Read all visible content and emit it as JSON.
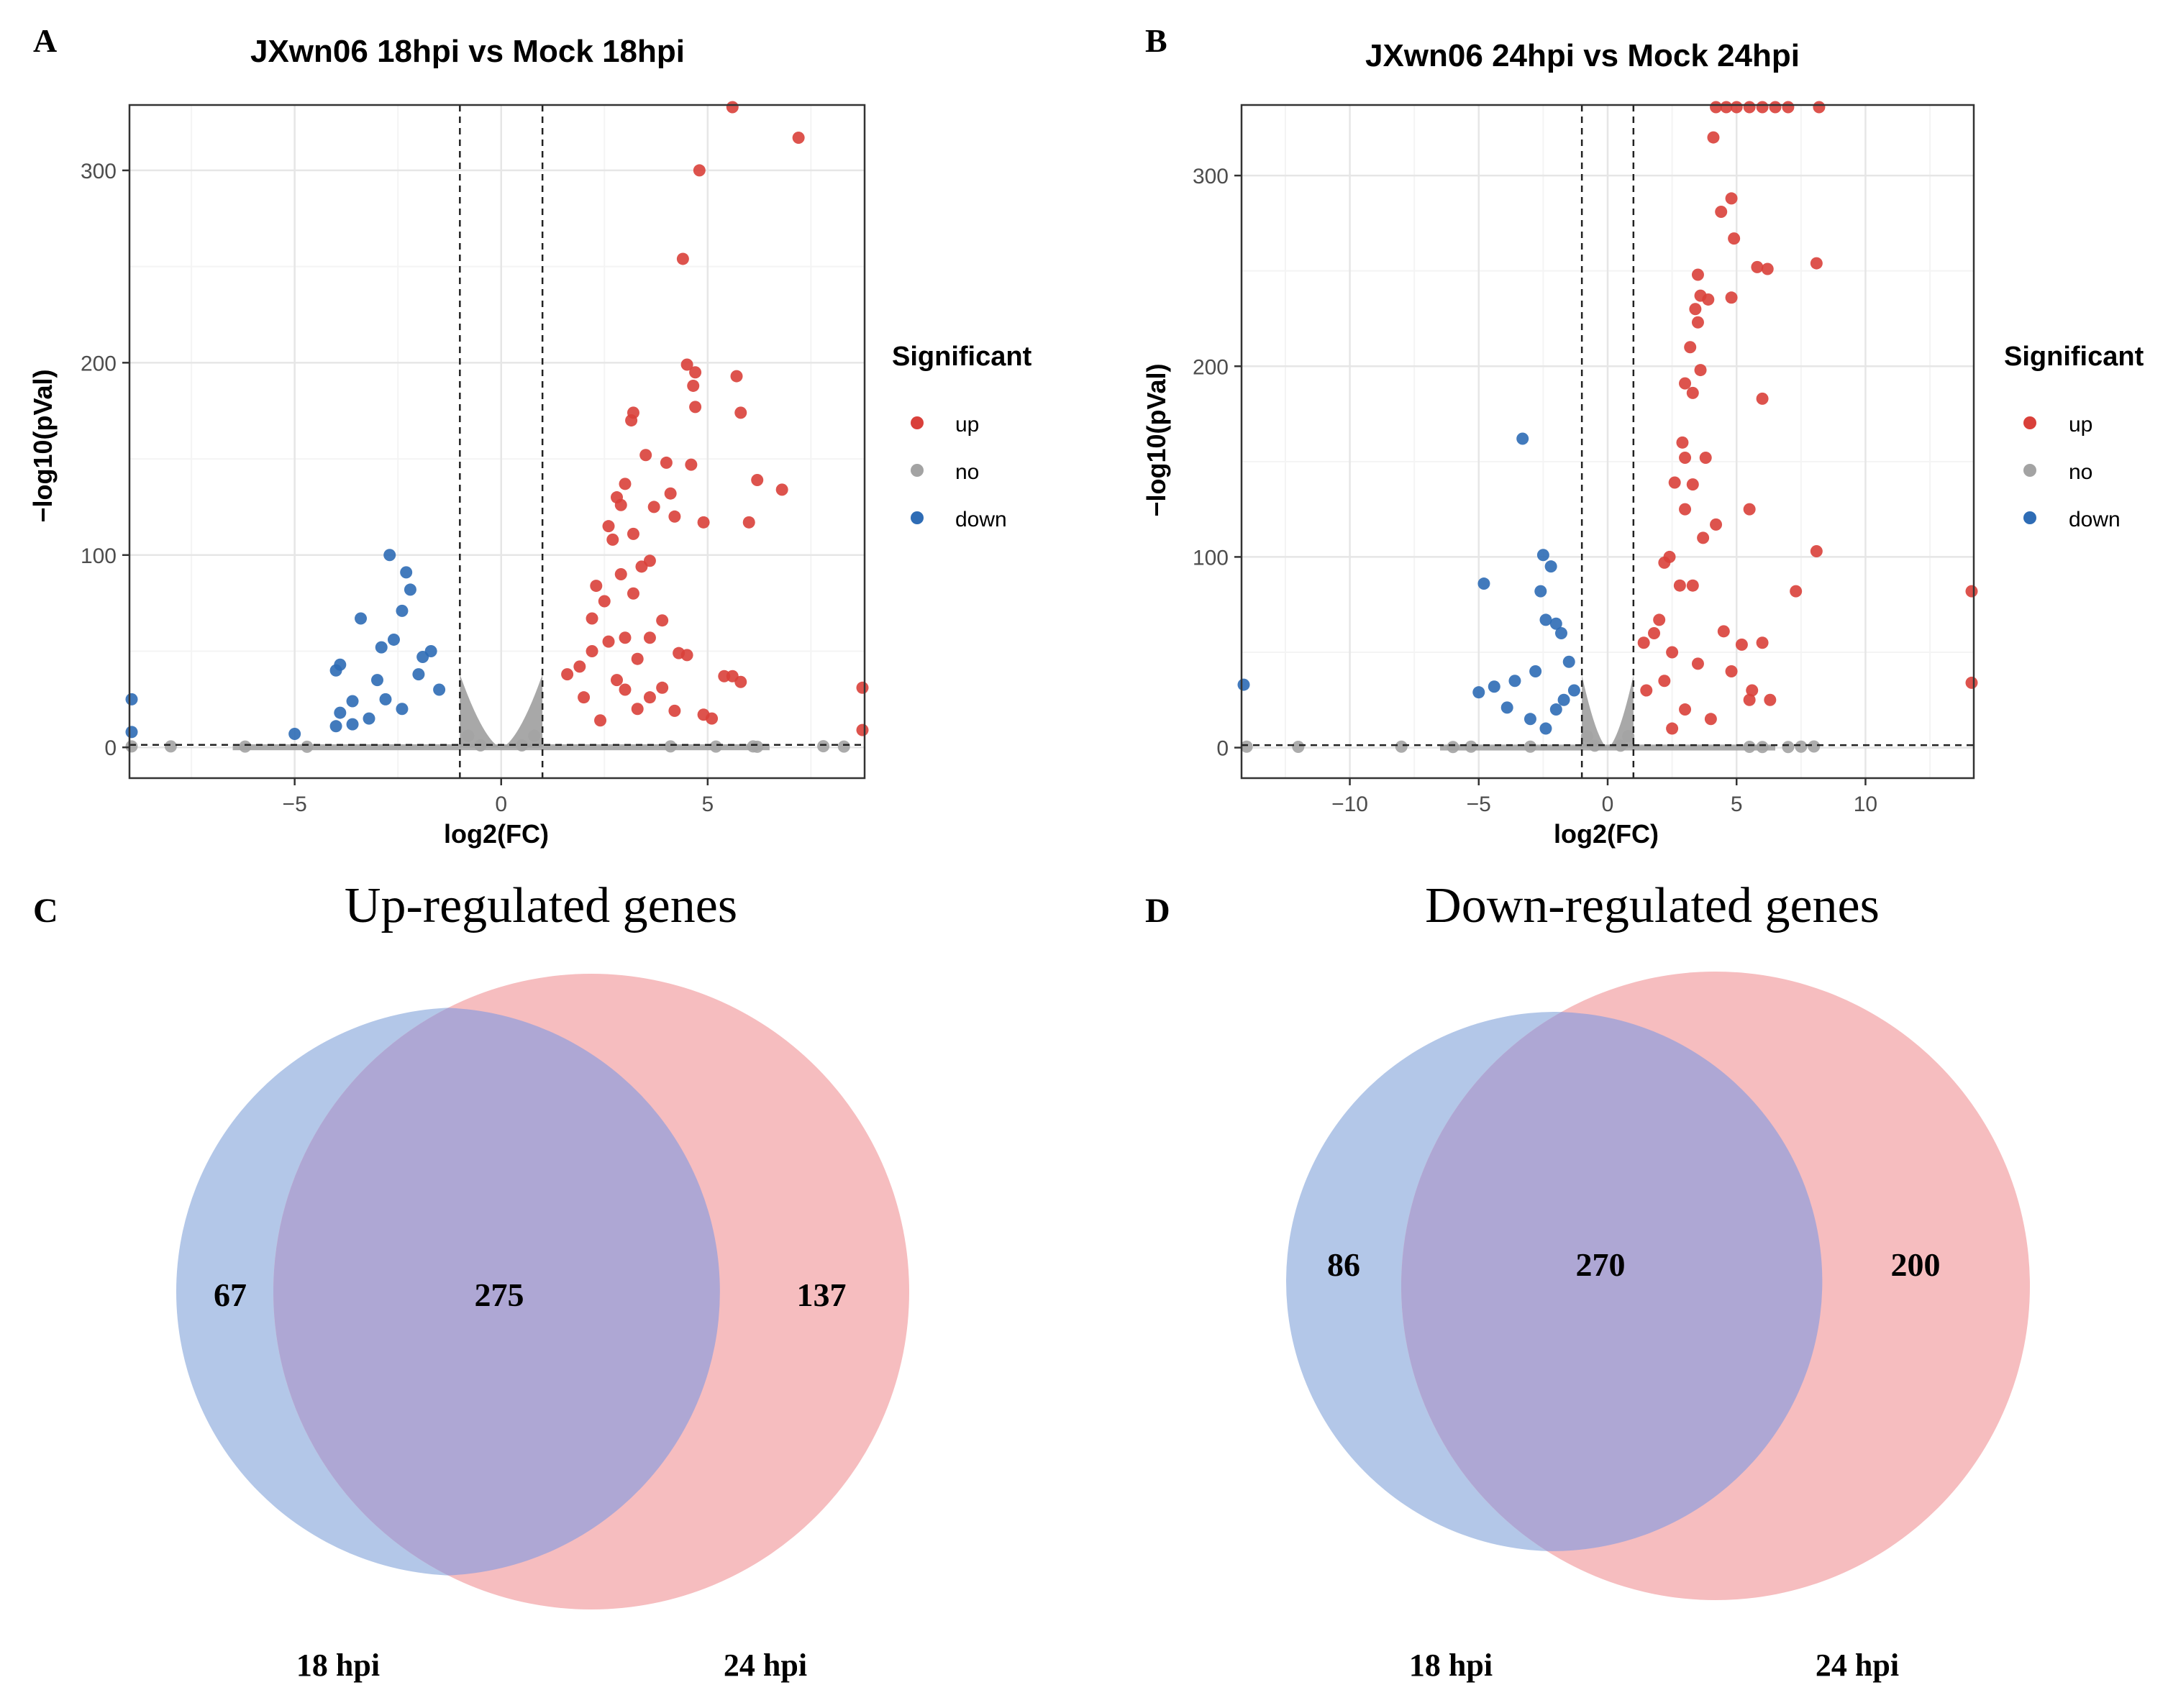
{
  "colors": {
    "up": "#D9403A",
    "no": "#A3A3A3",
    "down": "#2E6CB5",
    "venn_left": "#B3C7E8",
    "venn_right": "#F6BDBF",
    "venn_overlap": "#AEA7D4",
    "panel_border": "#333333",
    "grid_major": "#E6E6E6",
    "grid_minor": "#F4F4F4"
  },
  "chart_data": [
    {
      "panel": "A",
      "type": "scatter",
      "title": "JXwn06 18hpi vs Mock 18hpi",
      "xlabel": "log2(FC)",
      "ylabel": "−log10(pVal)",
      "xlim": [
        -9.0,
        8.8
      ],
      "ylim": [
        -16,
        334
      ],
      "xticks": [
        -5,
        0,
        5
      ],
      "xtick_labels": [
        "−5",
        "0",
        "5"
      ],
      "yticks": [
        0,
        100,
        200,
        300
      ],
      "ytick_labels": [
        "0",
        "100",
        "200",
        "300"
      ],
      "vlines": [
        -1,
        1
      ],
      "hline": 1.3,
      "legend": {
        "title": "Significant",
        "entries": [
          "up",
          "no",
          "down"
        ],
        "position": "right"
      },
      "series": [
        {
          "name": "up",
          "points": [
            [
              5.6,
              334
            ],
            [
              7.2,
              317
            ],
            [
              4.8,
              300
            ],
            [
              4.4,
              254
            ],
            [
              4.5,
              199
            ],
            [
              4.7,
              195
            ],
            [
              5.7,
              193
            ],
            [
              4.65,
              188
            ],
            [
              4.7,
              177
            ],
            [
              5.8,
              174
            ],
            [
              3.2,
              174
            ],
            [
              3.15,
              170
            ],
            [
              3.5,
              152
            ],
            [
              4.0,
              148
            ],
            [
              4.6,
              147
            ],
            [
              6.2,
              139
            ],
            [
              6.8,
              134
            ],
            [
              3.0,
              137
            ],
            [
              2.8,
              130
            ],
            [
              4.1,
              132
            ],
            [
              6.0,
              117
            ],
            [
              4.9,
              117
            ],
            [
              2.9,
              126
            ],
            [
              3.7,
              125
            ],
            [
              2.6,
              115
            ],
            [
              4.2,
              120
            ],
            [
              3.2,
              111
            ],
            [
              2.7,
              108
            ],
            [
              3.6,
              97
            ],
            [
              3.4,
              94
            ],
            [
              2.9,
              90
            ],
            [
              2.3,
              84
            ],
            [
              3.2,
              80
            ],
            [
              2.5,
              76
            ],
            [
              3.9,
              66
            ],
            [
              2.2,
              67
            ],
            [
              2.6,
              55
            ],
            [
              3.0,
              57
            ],
            [
              3.6,
              57
            ],
            [
              4.3,
              49
            ],
            [
              4.5,
              48
            ],
            [
              3.3,
              46
            ],
            [
              5.4,
              37
            ],
            [
              5.6,
              37
            ],
            [
              5.8,
              34
            ],
            [
              8.8,
              31
            ],
            [
              8.8,
              9
            ],
            [
              4.9,
              17
            ],
            [
              3.3,
              20
            ],
            [
              3.0,
              30
            ],
            [
              2.0,
              26
            ],
            [
              2.4,
              14
            ],
            [
              1.6,
              38
            ],
            [
              1.9,
              42
            ],
            [
              2.8,
              35
            ],
            [
              4.2,
              19
            ],
            [
              3.6,
              26
            ],
            [
              5.1,
              15
            ],
            [
              3.9,
              31
            ],
            [
              2.2,
              50
            ]
          ]
        },
        {
          "name": "down",
          "points": [
            [
              -2.7,
              100
            ],
            [
              -2.3,
              91
            ],
            [
              -2.2,
              82
            ],
            [
              -2.4,
              71
            ],
            [
              -3.4,
              67
            ],
            [
              -2.6,
              56
            ],
            [
              -2.9,
              52
            ],
            [
              -3.9,
              43
            ],
            [
              -4.0,
              40
            ],
            [
              -1.7,
              50
            ],
            [
              -1.9,
              47
            ],
            [
              -2.0,
              38
            ],
            [
              -3.0,
              35
            ],
            [
              -3.6,
              24
            ],
            [
              -3.9,
              18
            ],
            [
              -4.0,
              11
            ],
            [
              -3.2,
              15
            ],
            [
              -3.6,
              12
            ],
            [
              -5.0,
              7
            ],
            [
              -9.0,
              25
            ],
            [
              -9.0,
              8
            ],
            [
              -1.5,
              30
            ],
            [
              -2.4,
              20
            ],
            [
              -2.8,
              25
            ]
          ]
        },
        {
          "name": "no",
          "points": [
            [
              -9,
              0.5
            ],
            [
              -8,
              0.5
            ],
            [
              -6.2,
              0.4
            ],
            [
              -4.7,
              0.3
            ],
            [
              4.1,
              0.5
            ],
            [
              5.2,
              0.4
            ],
            [
              6.1,
              0.5
            ],
            [
              6.2,
              0.3
            ],
            [
              7.8,
              0.6
            ],
            [
              8.3,
              0.4
            ],
            [
              -0.5,
              1
            ],
            [
              0.5,
              1
            ],
            [
              -0.8,
              6
            ],
            [
              0.8,
              6
            ]
          ]
        }
      ]
    },
    {
      "panel": "B",
      "type": "scatter",
      "title": "JXwn06 24hpi vs Mock 24hpi",
      "xlabel": "log2(FC)",
      "ylabel": "−log10(pVal)",
      "xlim": [
        -14.2,
        14.2
      ],
      "ylim": [
        -16,
        337
      ],
      "xticks": [
        -10,
        -5,
        0,
        5,
        10
      ],
      "xtick_labels": [
        "−10",
        "−5",
        "0",
        "5",
        "10"
      ],
      "yticks": [
        0,
        100,
        200,
        300
      ],
      "ytick_labels": [
        "0",
        "100",
        "200",
        "300"
      ],
      "vlines": [
        -1,
        1
      ],
      "hline": 1.3,
      "legend": {
        "title": "Significant",
        "entries": [
          "up",
          "no",
          "down"
        ],
        "position": "right"
      },
      "series": [
        {
          "name": "up",
          "points": [
            [
              4.2,
              337
            ],
            [
              4.6,
              337
            ],
            [
              5.0,
              337
            ],
            [
              5.5,
              337
            ],
            [
              6.0,
              337
            ],
            [
              6.5,
              337
            ],
            [
              7.0,
              337
            ],
            [
              8.2,
              337
            ],
            [
              4.1,
              320
            ],
            [
              4.8,
              288
            ],
            [
              4.4,
              281
            ],
            [
              4.9,
              267
            ],
            [
              5.8,
              252
            ],
            [
              6.2,
              251
            ],
            [
              8.1,
              254
            ],
            [
              3.5,
              248
            ],
            [
              3.6,
              237
            ],
            [
              3.9,
              235
            ],
            [
              3.4,
              230
            ],
            [
              3.5,
              223
            ],
            [
              4.8,
              236
            ],
            [
              3.2,
              210
            ],
            [
              3.6,
              198
            ],
            [
              3.0,
              191
            ],
            [
              3.3,
              186
            ],
            [
              6.0,
              183
            ],
            [
              2.9,
              160
            ],
            [
              3.0,
              152
            ],
            [
              3.8,
              152
            ],
            [
              3.3,
              138
            ],
            [
              2.6,
              139
            ],
            [
              5.5,
              125
            ],
            [
              3.0,
              125
            ],
            [
              4.2,
              117
            ],
            [
              3.7,
              110
            ],
            [
              2.4,
              100
            ],
            [
              8.1,
              103
            ],
            [
              2.2,
              97
            ],
            [
              7.3,
              82
            ],
            [
              2.8,
              85
            ],
            [
              3.3,
              85
            ],
            [
              14.2,
              82
            ],
            [
              4.5,
              61
            ],
            [
              5.2,
              54
            ],
            [
              6.0,
              55
            ],
            [
              14.2,
              34
            ],
            [
              5.6,
              30
            ],
            [
              5.5,
              25
            ],
            [
              6.3,
              25
            ],
            [
              2.0,
              67
            ],
            [
              1.8,
              60
            ],
            [
              2.5,
              50
            ],
            [
              3.5,
              44
            ],
            [
              4.8,
              40
            ],
            [
              1.5,
              30
            ],
            [
              2.2,
              35
            ],
            [
              3.0,
              20
            ],
            [
              4.0,
              15
            ],
            [
              2.5,
              10
            ],
            [
              1.4,
              55
            ]
          ]
        },
        {
          "name": "down",
          "points": [
            [
              -3.3,
              162
            ],
            [
              -2.5,
              101
            ],
            [
              -2.2,
              95
            ],
            [
              -4.8,
              86
            ],
            [
              -2.6,
              82
            ],
            [
              -2.4,
              67
            ],
            [
              -2.0,
              65
            ],
            [
              -1.8,
              60
            ],
            [
              -5.0,
              29
            ],
            [
              -4.4,
              32
            ],
            [
              -3.9,
              21
            ],
            [
              -3.6,
              35
            ],
            [
              -2.8,
              40
            ],
            [
              -14.2,
              33
            ],
            [
              -1.5,
              45
            ],
            [
              -1.3,
              30
            ],
            [
              -2.0,
              20
            ],
            [
              -3.0,
              15
            ],
            [
              -2.4,
              10
            ],
            [
              -1.7,
              25
            ]
          ]
        },
        {
          "name": "no",
          "points": [
            [
              -14,
              0.5
            ],
            [
              -12,
              0.4
            ],
            [
              -8,
              0.5
            ],
            [
              -6,
              0.3
            ],
            [
              -5.3,
              0.5
            ],
            [
              -3,
              0.5
            ],
            [
              5.5,
              0.4
            ],
            [
              6,
              0.3
            ],
            [
              7.5,
              0.5
            ],
            [
              7,
              0.3
            ],
            [
              8,
              0.6
            ],
            [
              -0.5,
              1
            ],
            [
              0.5,
              1
            ],
            [
              -0.8,
              6
            ],
            [
              0.8,
              6
            ]
          ]
        }
      ]
    },
    {
      "panel": "C",
      "type": "venn",
      "title": "Up-regulated genes",
      "sets": [
        "18 hpi",
        "24 hpi"
      ],
      "values": {
        "only_left": "67",
        "overlap": "275",
        "only_right": "137"
      }
    },
    {
      "panel": "D",
      "type": "venn",
      "title": "Down-regulated genes",
      "sets": [
        "18 hpi",
        "24 hpi"
      ],
      "values": {
        "only_left": "86",
        "overlap": "270",
        "only_right": "200"
      }
    }
  ]
}
